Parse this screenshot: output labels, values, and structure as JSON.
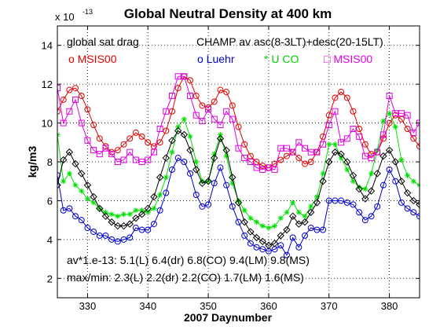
{
  "chart_data": {
    "type": "line",
    "title": "Global Neutral Density at 400 km",
    "xlabel": "2007 Daynumber",
    "ylabel": "kg/m3",
    "y_exponent_base": "x 10",
    "y_exponent_power": "-13",
    "xlim": [
      325,
      385
    ],
    "ylim": [
      1,
      15
    ],
    "xticks": [
      330,
      340,
      350,
      360,
      370,
      380
    ],
    "yticks": [
      2,
      4,
      6,
      8,
      10,
      12,
      14
    ],
    "grid": true,
    "annotations": {
      "header_left": "global sat drag",
      "header_right": "CHAMP av asc(8-3LT)+desc(20-15LT)",
      "stats_line1": "av*1.e-13: 5.1(L) 6.4(dr) 6.8(CO) 9.4(LM) 9.8(MS)",
      "stats_line2": "max/min: 2.3(L) 2.2(dr) 2.2(CO) 1.7(LM) 1.6(MS)"
    },
    "series": [
      {
        "name": "MSIS00",
        "legend_label": "o MSIS00",
        "color": "#e00000",
        "marker": "circle",
        "x": [
          325,
          326,
          327,
          328,
          329,
          330,
          331,
          332,
          333,
          334,
          335,
          336,
          337,
          338,
          339,
          340,
          341,
          342,
          343,
          344,
          345,
          346,
          347,
          348,
          349,
          350,
          351,
          352,
          353,
          354,
          355,
          356,
          357,
          358,
          359,
          360,
          361,
          362,
          363,
          364,
          365,
          366,
          367,
          368,
          369,
          370,
          371,
          372,
          373,
          374,
          375,
          376,
          377,
          378,
          379,
          380,
          381,
          382,
          383,
          384,
          385
        ],
        "y": [
          10.6,
          11.2,
          11.7,
          11.8,
          11.4,
          10.7,
          9.9,
          9.2,
          8.8,
          8.5,
          8.6,
          8.9,
          9.2,
          9.5,
          9.3,
          9.0,
          8.8,
          9.0,
          9.6,
          10.6,
          11.8,
          12.4,
          12.2,
          11.4,
          10.9,
          10.8,
          11.1,
          11.7,
          11.6,
          10.9,
          9.8,
          8.9,
          8.3,
          8.0,
          7.8,
          7.7,
          7.9,
          8.1,
          8.3,
          8.5,
          8.2,
          7.9,
          8.0,
          8.5,
          9.3,
          10.4,
          11.3,
          11.6,
          11.3,
          10.6,
          9.7,
          8.9,
          8.4,
          8.5,
          9.2,
          10.0,
          10.4,
          10.2,
          9.7,
          9.2,
          8.8
        ]
      },
      {
        "name": "Luehr",
        "legend_label": "o Luehr",
        "color": "#0000d0",
        "marker": "circle",
        "x": [
          325,
          326,
          327,
          328,
          329,
          330,
          331,
          332,
          333,
          334,
          335,
          336,
          337,
          338,
          339,
          340,
          341,
          342,
          343,
          344,
          345,
          346,
          347,
          348,
          349,
          350,
          351,
          352,
          353,
          354,
          355,
          356,
          357,
          358,
          359,
          360,
          361,
          362,
          363,
          364,
          365,
          366,
          367,
          368,
          369,
          370,
          371,
          372,
          373,
          374,
          375,
          376,
          377,
          378,
          379,
          380,
          381,
          382,
          383,
          384,
          385
        ],
        "y": [
          7.3,
          5.5,
          5.6,
          5.2,
          5.0,
          4.6,
          4.4,
          4.2,
          4.2,
          4.0,
          3.9,
          4.0,
          4.1,
          4.6,
          4.5,
          4.5,
          4.8,
          5.5,
          6.4,
          7.6,
          8.2,
          8.0,
          7.4,
          6.3,
          5.7,
          5.8,
          6.9,
          7.7,
          6.8,
          5.7,
          4.9,
          4.2,
          3.8,
          3.6,
          3.5,
          3.4,
          3.5,
          3.7,
          3.2,
          4.1,
          3.6,
          4.2,
          4.6,
          4.5,
          4.5,
          6.0,
          6.0,
          6.0,
          5.9,
          5.8,
          5.4,
          5.0,
          5.2,
          5.7,
          6.8,
          7.6,
          7.0,
          5.9,
          5.6,
          5.4,
          5.2
        ]
      },
      {
        "name": "U CO",
        "legend_label": "* U CO",
        "color": "#00e000",
        "marker": "star",
        "x": [
          325,
          326,
          327,
          328,
          329,
          330,
          331,
          332,
          333,
          334,
          335,
          336,
          337,
          338,
          339,
          340,
          341,
          342,
          343,
          344,
          345,
          346,
          347,
          348,
          349,
          350,
          351,
          352,
          353,
          354,
          355,
          356,
          357,
          358,
          359,
          360,
          361,
          362,
          363,
          364,
          365,
          366,
          367,
          368,
          369,
          370,
          371,
          372,
          373,
          374,
          375,
          376,
          377,
          378,
          379,
          380,
          381,
          382,
          383,
          384,
          385
        ],
        "y": [
          9.4,
          7.0,
          7.4,
          6.8,
          6.5,
          6.1,
          5.9,
          5.6,
          5.4,
          5.3,
          5.2,
          5.3,
          5.3,
          5.5,
          5.5,
          5.4,
          5.6,
          6.3,
          7.2,
          8.5,
          9.8,
          10.2,
          9.3,
          8.0,
          7.0,
          7.0,
          8.4,
          9.4,
          8.3,
          6.9,
          6.0,
          5.5,
          5.1,
          4.9,
          4.7,
          4.6,
          4.7,
          5.1,
          5.4,
          5.9,
          5.4,
          5.2,
          5.7,
          6.2,
          7.4,
          8.9,
          8.9,
          8.2,
          7.6,
          7.0,
          6.7,
          6.6,
          7.4,
          8.6,
          10.1,
          10.5,
          9.8,
          8.1,
          7.3,
          7.0,
          6.8
        ]
      },
      {
        "name": "CHAMP",
        "legend_label": "",
        "color": "#000000",
        "marker": "diamond",
        "x": [
          325,
          326,
          327,
          328,
          329,
          330,
          331,
          332,
          333,
          334,
          335,
          336,
          337,
          338,
          339,
          340,
          341,
          342,
          343,
          344,
          345,
          346,
          347,
          348,
          349,
          350,
          351,
          352,
          353,
          354,
          355,
          356,
          357,
          358,
          359,
          360,
          361,
          362,
          363,
          364,
          365,
          366,
          367,
          368,
          369,
          370,
          371,
          372,
          373,
          374,
          375,
          376,
          377,
          378,
          379,
          380,
          381,
          382,
          383,
          384,
          385
        ],
        "y": [
          6.8,
          8.1,
          8.5,
          7.9,
          7.4,
          6.8,
          6.2,
          5.6,
          5.2,
          4.9,
          4.7,
          4.7,
          4.8,
          5.1,
          5.3,
          5.6,
          6.2,
          7.2,
          8.2,
          9.1,
          9.6,
          9.4,
          8.6,
          7.6,
          6.9,
          7.0,
          8.2,
          9.2,
          8.6,
          7.2,
          5.9,
          4.9,
          4.4,
          4.1,
          3.9,
          3.7,
          3.8,
          4.2,
          4.5,
          5.2,
          4.8,
          4.9,
          5.4,
          5.9,
          7.0,
          8.0,
          8.5,
          8.4,
          8.0,
          7.3,
          6.6,
          6.1,
          6.5,
          7.4,
          8.3,
          8.6,
          8.0,
          7.0,
          6.4,
          6.0,
          5.8
        ]
      },
      {
        "name": "MSIS00",
        "legend_label": "□ MSIS00",
        "color": "#e000e0",
        "marker": "square",
        "x": [
          325,
          326,
          327,
          328,
          329,
          330,
          331,
          332,
          333,
          334,
          335,
          336,
          337,
          338,
          339,
          340,
          341,
          342,
          343,
          344,
          345,
          346,
          347,
          348,
          349,
          350,
          351,
          352,
          353,
          354,
          355,
          356,
          357,
          358,
          359,
          360,
          361,
          362,
          363,
          364,
          365,
          366,
          367,
          368,
          369,
          370,
          371,
          372,
          373,
          374,
          375,
          376,
          377,
          378,
          379,
          380,
          381,
          382,
          383,
          384,
          385
        ],
        "y": [
          11.8,
          10.0,
          10.6,
          11.2,
          10.0,
          9.1,
          8.6,
          8.4,
          8.7,
          8.4,
          8.0,
          8.1,
          8.5,
          8.1,
          8.0,
          8.1,
          8.5,
          9.7,
          10.6,
          11.4,
          12.4,
          12.4,
          11.4,
          10.4,
          10.1,
          10.7,
          10.2,
          9.9,
          10.6,
          10.2,
          8.7,
          8.2,
          8.0,
          7.7,
          7.6,
          7.7,
          7.6,
          8.7,
          8.7,
          8.5,
          9.0,
          8.7,
          8.5,
          8.5,
          8.9,
          9.9,
          10.6,
          9.0,
          9.2,
          9.7,
          9.3,
          8.3,
          8.2,
          8.5,
          9.4,
          11.4,
          10.5,
          10.5,
          10.4,
          9.5,
          10.0
        ]
      }
    ]
  }
}
